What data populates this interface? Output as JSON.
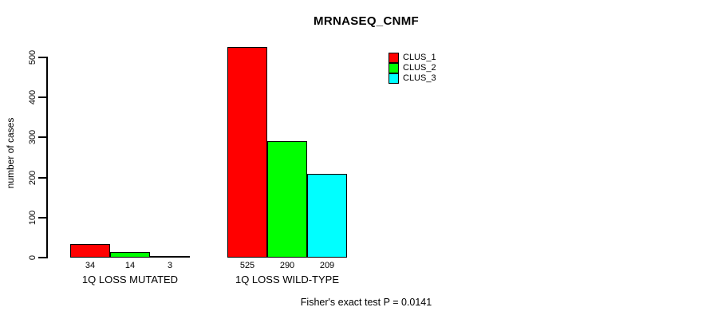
{
  "chart_data": {
    "type": "bar",
    "title": "MRNASEQ_CNMF",
    "ylabel": "number of cases",
    "xlabel": "",
    "categories": [
      "1Q LOSS MUTATED",
      "1Q LOSS WILD-TYPE"
    ],
    "series": [
      {
        "name": "CLUS_1",
        "color": "#FF0000",
        "values": [
          34,
          525
        ]
      },
      {
        "name": "CLUS_2",
        "color": "#00FF00",
        "values": [
          14,
          290
        ]
      },
      {
        "name": "CLUS_3",
        "color": "#00FFFF",
        "values": [
          3,
          209
        ]
      }
    ],
    "yticks": [
      0,
      100,
      200,
      300,
      400,
      500
    ],
    "ylim": [
      0,
      525
    ],
    "grid": false,
    "bar_value_labels_shown": true,
    "legend_position": "top-right",
    "footnote": "Fisher's exact test P = 0.0141"
  },
  "page": {
    "background_color": "#FFFFFF"
  }
}
